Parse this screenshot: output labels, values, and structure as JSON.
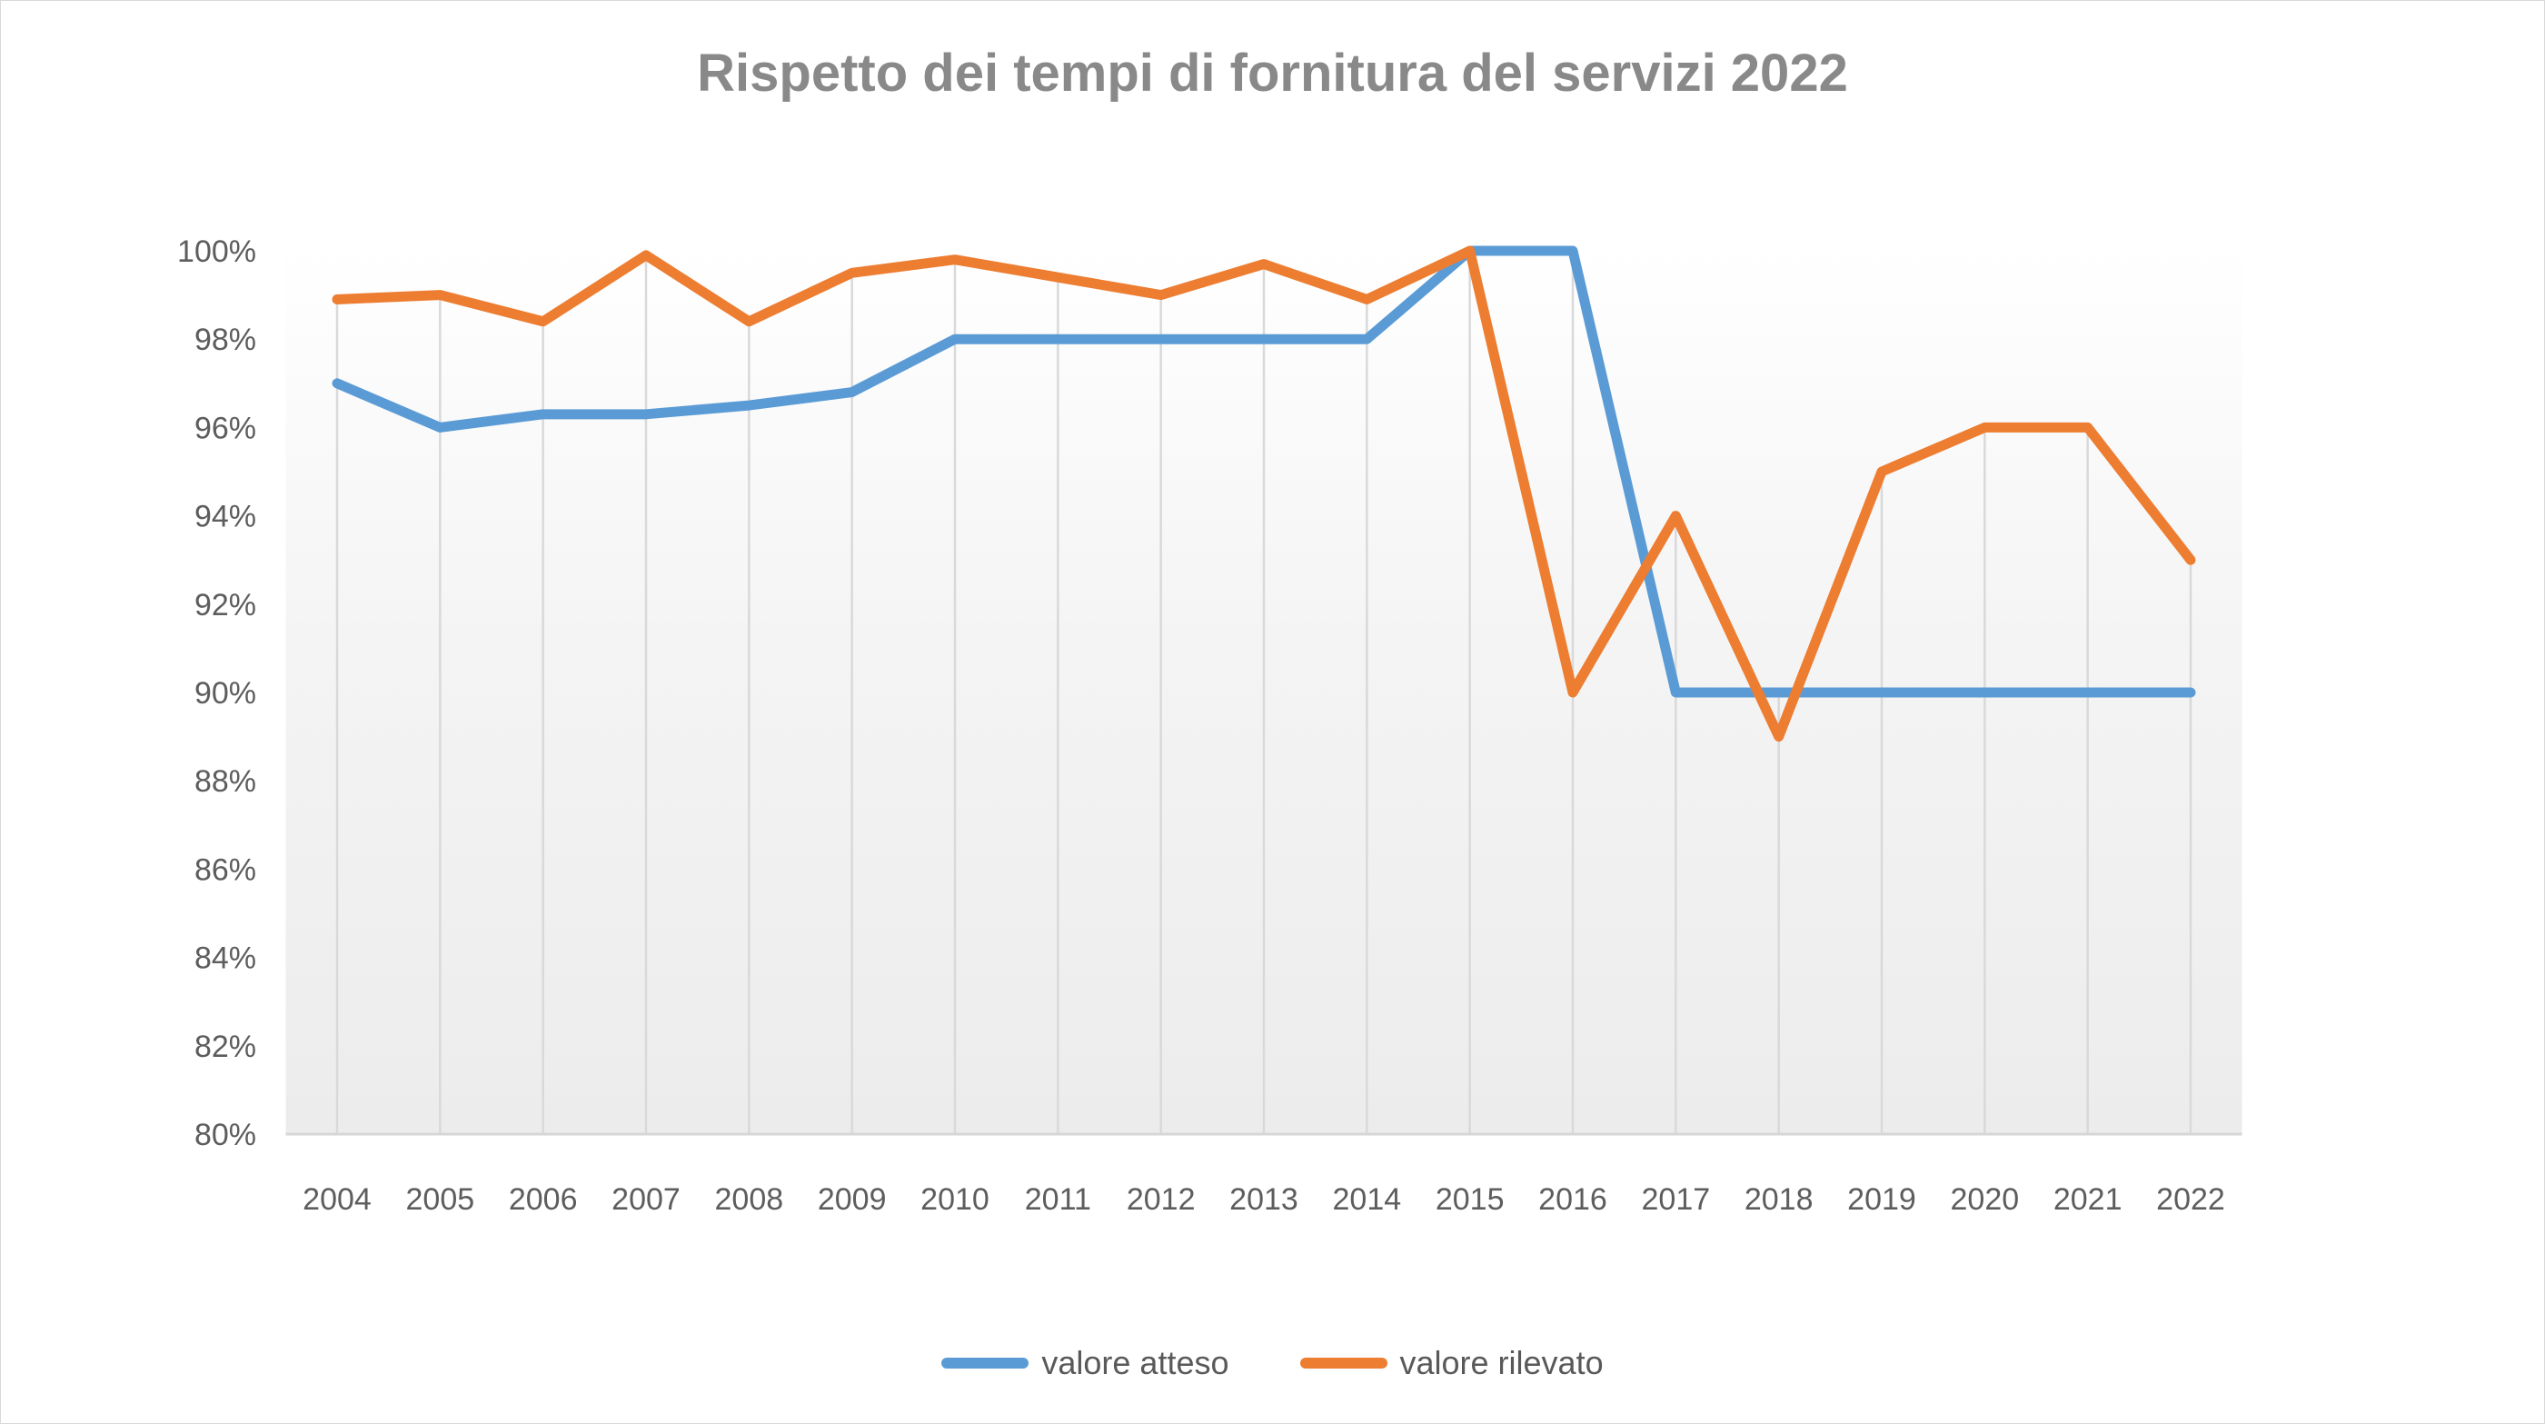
{
  "title": "Rispetto dei tempi di fornitura del servizi 2022",
  "legend": {
    "items": [
      {
        "label": "valore atteso",
        "color": "#5B9BD5"
      },
      {
        "label": "valore rilevato",
        "color": "#ED7D31"
      }
    ],
    "position": "bottom"
  },
  "y_axis": {
    "labels": [
      "100%",
      "98%",
      "96%",
      "94%",
      "92%",
      "90%",
      "88%",
      "86%",
      "84%",
      "82%",
      "80%"
    ]
  },
  "x_axis": {
    "labels": [
      "2004",
      "2005",
      "2006",
      "2007",
      "2008",
      "2009",
      "2010",
      "2011",
      "2012",
      "2013",
      "2014",
      "2015",
      "2016",
      "2017",
      "2018",
      "2019",
      "2020",
      "2021",
      "2022"
    ]
  },
  "colors": {
    "series_atteso": "#5B9BD5",
    "series_rilevato": "#ED7D31",
    "axis_text": "#5d5d5d",
    "title_text": "#898989",
    "drop_line": "#d9d9d9",
    "axis_line": "#d6d6d6",
    "plot_bg_top": "#ffffff",
    "plot_bg_bottom": "#ececec"
  },
  "chart_data": {
    "type": "line",
    "title": "Rispetto dei tempi di fornitura del servizi 2022",
    "x": [
      2004,
      2005,
      2006,
      2007,
      2008,
      2009,
      2010,
      2011,
      2012,
      2013,
      2014,
      2015,
      2016,
      2017,
      2018,
      2019,
      2020,
      2021,
      2022
    ],
    "series": [
      {
        "name": "valore atteso",
        "color": "#5B9BD5",
        "values": [
          97,
          96,
          96.3,
          96.3,
          96.5,
          96.8,
          98,
          98,
          98,
          98,
          98,
          100,
          100,
          90,
          90,
          90,
          90,
          90,
          90
        ]
      },
      {
        "name": "valore rilevato",
        "color": "#ED7D31",
        "values": [
          98.9,
          99,
          98.4,
          99.9,
          98.4,
          99.5,
          99.8,
          99.4,
          99,
          99.7,
          98.9,
          100,
          90,
          94,
          89,
          95,
          96,
          96,
          93
        ]
      }
    ],
    "ylim": [
      80,
      100
    ],
    "ytick_step": 2,
    "ytick_suffix": "%",
    "grid": "vertical-drop-lines-from-max-series",
    "horizontal_gridlines": false,
    "legend_position": "bottom"
  }
}
